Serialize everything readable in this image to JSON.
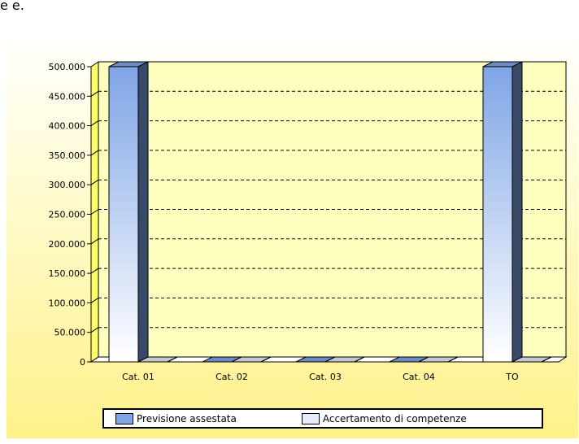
{
  "page": {
    "top_fragment": "e e."
  },
  "chart_data": {
    "type": "bar",
    "categories": [
      "Cat. 01",
      "Cat. 02",
      "Cat. 03",
      "Cat. 04",
      "TO"
    ],
    "series": [
      {
        "name": "Previsione assestata",
        "values": [
          500000,
          0,
          0,
          0,
          500000
        ],
        "color": "#7fa5e6"
      },
      {
        "name": "Accertamento di competenze",
        "values": [
          0,
          0,
          0,
          0,
          0
        ],
        "color": "#e4ecf8"
      }
    ],
    "y_ticks": [
      "0",
      "50.000",
      "100.000",
      "150.000",
      "200.000",
      "250.000",
      "300.000",
      "350.000",
      "400.000",
      "450.000",
      "500.000"
    ],
    "ylim": [
      0,
      500000
    ],
    "grid": true,
    "legend_position": "bottom",
    "colors": {
      "back_wall": "#ffffc0",
      "left_wall": "#ffff66",
      "gridline": "#000000"
    }
  }
}
